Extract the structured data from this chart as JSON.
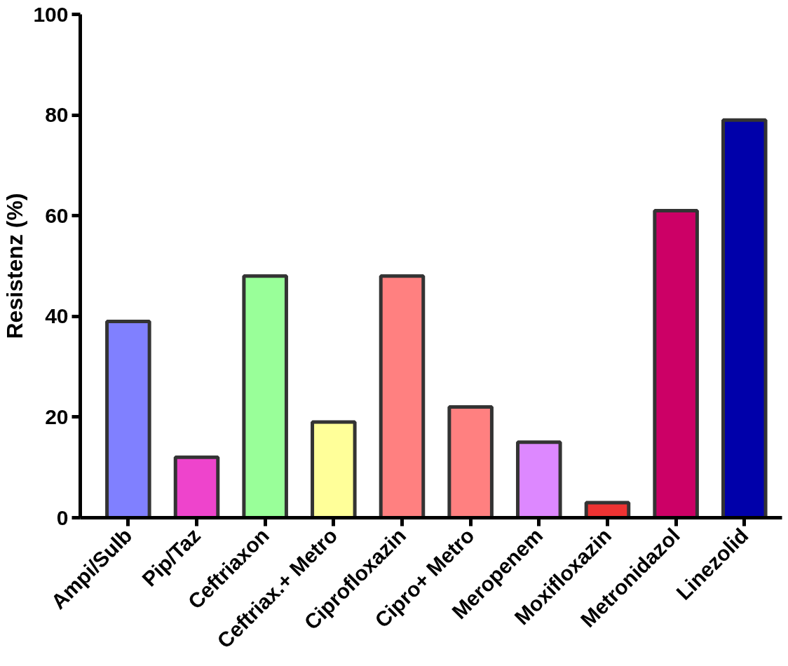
{
  "chart_data": {
    "type": "bar",
    "ylabel": "Resistenz (%)",
    "categories": [
      "Ampi/Sulb",
      "Pip/Taz",
      "Ceftriaxon",
      "Ceftriax.+ Metro",
      "Ciprofloxazin",
      "Cipro+ Metro",
      "Meropenem",
      "Moxifloxazin",
      "Metronidazol",
      "Linezolid"
    ],
    "values": [
      39,
      12,
      48,
      19,
      48,
      22,
      15,
      3,
      61,
      79
    ],
    "colors": [
      "#8080ff",
      "#ee44cc",
      "#99ff99",
      "#ffff99",
      "#ff8080",
      "#ff8080",
      "#dd88ff",
      "#ee3333",
      "#cc0066",
      "#0000aa"
    ],
    "ylim": [
      0,
      100
    ],
    "yticks": [
      0,
      20,
      40,
      60,
      80,
      100
    ],
    "grid": false
  }
}
